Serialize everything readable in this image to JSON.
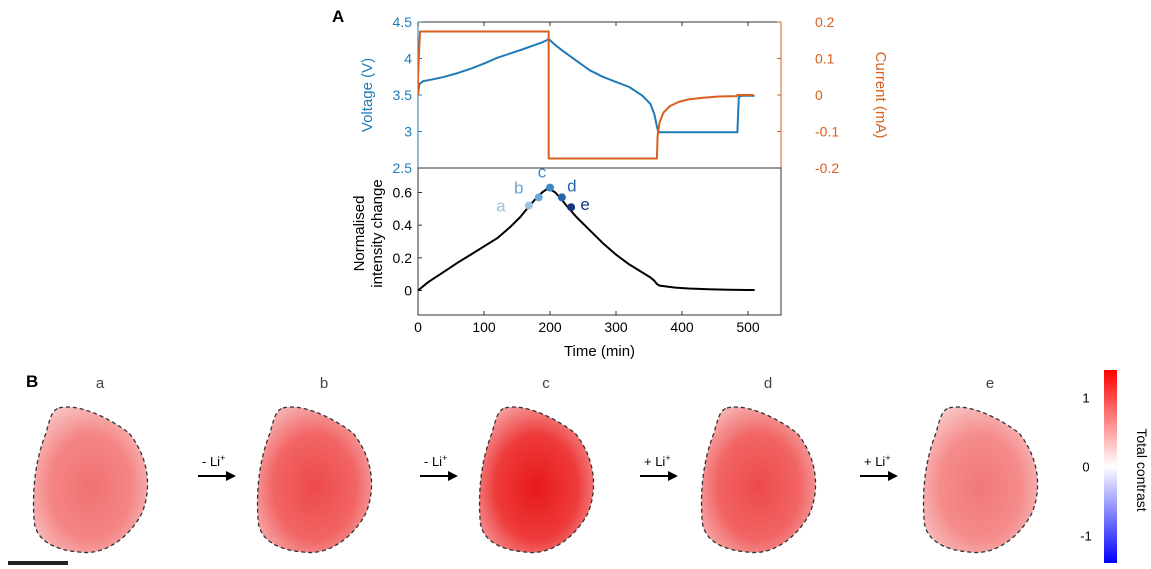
{
  "panel_labels": {
    "a": "A",
    "b": "B"
  },
  "colors": {
    "voltage": "#1f7ab8",
    "current": "#d95f1e",
    "intensity": "#000000",
    "point_a": "#9cc3e0",
    "point_b": "#6aa6d6",
    "point_c": "#3f86c4",
    "point_d": "#2565a8",
    "point_e": "#10357a",
    "blob_edge": "#333333",
    "colorbar_positive": "#ff0000",
    "colorbar_zero": "#ffffff",
    "colorbar_negative": "#0000ff"
  },
  "chart_data": [
    {
      "type": "line",
      "panel": "A-top",
      "ylabel_left": "Voltage (V)",
      "ylabel_right": "Current (mA)",
      "xlim": [
        0,
        550
      ],
      "ylim_left": [
        2.5,
        4.5
      ],
      "ylim_right": [
        -0.2,
        0.2
      ],
      "yticks_left": [
        "2.5",
        "3",
        "3.5",
        "4",
        "4.5"
      ],
      "yticks_right": [
        "-0.2",
        "-0.1",
        "0",
        "0.1",
        "0.2"
      ],
      "series": [
        {
          "axis": "left",
          "x": [
            0,
            2,
            8,
            20,
            40,
            60,
            80,
            100,
            120,
            140,
            160,
            175,
            188,
            195,
            198,
            200,
            210,
            220,
            240,
            260,
            280,
            300,
            320,
            340,
            352,
            358,
            362,
            364,
            365,
            380,
            400,
            440,
            470,
            484,
            486,
            490,
            498,
            510
          ],
          "y": [
            3.5,
            3.65,
            3.69,
            3.71,
            3.75,
            3.8,
            3.86,
            3.93,
            4.01,
            4.07,
            4.13,
            4.18,
            4.22,
            4.25,
            4.27,
            4.25,
            4.17,
            4.1,
            3.97,
            3.84,
            3.75,
            3.68,
            3.61,
            3.49,
            3.38,
            3.24,
            3.07,
            3.0,
            2.99,
            2.99,
            2.99,
            2.99,
            2.99,
            2.99,
            3.47,
            3.49,
            3.49,
            3.49
          ]
        },
        {
          "axis": "right",
          "x": [
            0,
            0,
            3,
            198,
            198,
            362,
            362,
            363,
            366,
            372,
            382,
            395,
            410,
            430,
            455,
            483,
            484,
            484,
            487,
            495,
            508
          ],
          "y": [
            0.0,
            0.05,
            0.174,
            0.174,
            -0.174,
            -0.174,
            -0.174,
            -0.112,
            -0.075,
            -0.048,
            -0.03,
            -0.019,
            -0.012,
            -0.008,
            -0.004,
            -0.003,
            0.0,
            0.0,
            0.0,
            0.0,
            0.0
          ]
        }
      ]
    },
    {
      "type": "line",
      "panel": "A-bottom",
      "xlabel": "Time (min)",
      "ylabel": [
        "Normalised",
        "intensity change"
      ],
      "xlim": [
        0,
        550
      ],
      "ylim": [
        -0.15,
        0.75
      ],
      "xticks": [
        "0",
        "100",
        "200",
        "300",
        "400",
        "500"
      ],
      "yticks": [
        "0",
        "0.2",
        "0.4",
        "0.6"
      ],
      "series": [
        {
          "x": [
            0,
            15,
            30,
            45,
            60,
            80,
            100,
            120,
            140,
            155,
            167,
            178,
            188,
            195,
            200,
            208,
            215,
            225,
            240,
            260,
            280,
            300,
            320,
            340,
            352,
            358,
            362,
            366,
            375,
            390,
            410,
            440,
            470,
            500,
            510
          ],
          "y": [
            0.0,
            0.05,
            0.09,
            0.13,
            0.17,
            0.22,
            0.27,
            0.32,
            0.39,
            0.45,
            0.51,
            0.56,
            0.6,
            0.62,
            0.62,
            0.6,
            0.57,
            0.52,
            0.45,
            0.37,
            0.29,
            0.22,
            0.16,
            0.11,
            0.08,
            0.06,
            0.04,
            0.03,
            0.025,
            0.018,
            0.012,
            0.008,
            0.005,
            0.003,
            0.003
          ]
        }
      ],
      "points": [
        {
          "label": "a",
          "x": 168,
          "y": 0.52
        },
        {
          "label": "b",
          "x": 183,
          "y": 0.57
        },
        {
          "label": "c",
          "x": 200,
          "y": 0.63
        },
        {
          "label": "d",
          "x": 218,
          "y": 0.57
        },
        {
          "label": "e",
          "x": 232,
          "y": 0.51
        }
      ]
    }
  ],
  "images": {
    "labels": [
      "a",
      "b",
      "c",
      "d",
      "e"
    ],
    "intensity": [
      0.52,
      0.57,
      0.63,
      0.57,
      0.51
    ]
  },
  "arrows": [
    "- Li+",
    "- Li+",
    "+ Li+",
    "+ Li+"
  ],
  "colorbar": {
    "label": "Total contrast",
    "ticks": [
      "1",
      "0",
      "-1"
    ]
  }
}
